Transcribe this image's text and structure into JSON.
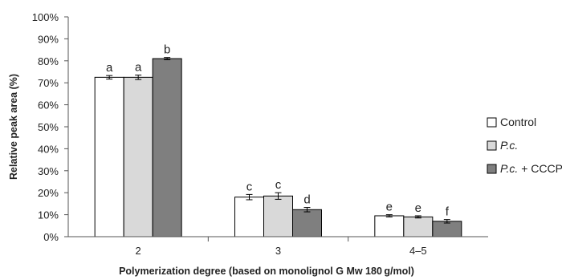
{
  "chart_data": {
    "type": "bar",
    "ylabel": "Relative peak area (%)",
    "xlabel": "Polymerization degree (based on monolignol G Mw 180 g/mol)",
    "ylim": [
      0,
      100
    ],
    "yticks": [
      "0%",
      "10%",
      "20%",
      "30%",
      "40%",
      "50%",
      "60%",
      "70%",
      "80%",
      "90%",
      "100%"
    ],
    "grid": false,
    "legend_position": "right",
    "categories": [
      "2",
      "3",
      "4–5"
    ],
    "series": [
      {
        "name": "Control",
        "legend_parts": [
          {
            "text": "Control",
            "italic": false
          }
        ],
        "color": "#ffffff",
        "values": [
          72.5,
          18,
          9.5
        ],
        "errors": [
          0.8,
          1.2,
          0.5
        ],
        "labels": [
          "a",
          "c",
          "e"
        ]
      },
      {
        "name": "P.c.",
        "legend_parts": [
          {
            "text": "P.c.",
            "italic": true
          }
        ],
        "color": "#d9d9d9",
        "values": [
          72.5,
          18.5,
          9
        ],
        "errors": [
          1.0,
          1.5,
          0.5
        ],
        "labels": [
          "a",
          "c",
          "e"
        ]
      },
      {
        "name": "P.c. + CCCP",
        "legend_parts": [
          {
            "text": "P.c.",
            "italic": true
          },
          {
            "text": " + CCCP",
            "italic": false
          }
        ],
        "color": "#7f7f7f",
        "values": [
          81,
          12.3,
          7
        ],
        "errors": [
          0.5,
          1.0,
          0.8
        ],
        "labels": [
          "b",
          "d",
          "f"
        ]
      }
    ]
  }
}
